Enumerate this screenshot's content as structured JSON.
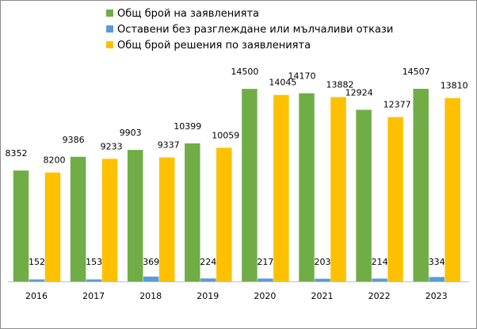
{
  "chart_data": {
    "type": "bar",
    "title": "",
    "xlabel": "",
    "ylabel": "",
    "ylim": [
      0,
      16000
    ],
    "grid": false,
    "legend_placement": "top-center",
    "categories": [
      "2016",
      "2017",
      "2018",
      "2019",
      "2020",
      "2021",
      "2022",
      "2023"
    ],
    "series": [
      {
        "name": "Общ брой на заявленията",
        "color": "#70ad47",
        "values": [
          8352,
          9386,
          9903,
          10399,
          14500,
          14170,
          12924,
          14507
        ]
      },
      {
        "name": "Оставени без разглеждане или мълчаливи откази",
        "color": "#5b9bd5",
        "values": [
          152,
          153,
          369,
          224,
          217,
          203,
          214,
          334
        ]
      },
      {
        "name": "Общ брой решения по заявленията",
        "color": "#ffc000",
        "values": [
          8200,
          9233,
          9337,
          10059,
          14045,
          13882,
          12377,
          13810
        ]
      }
    ]
  }
}
